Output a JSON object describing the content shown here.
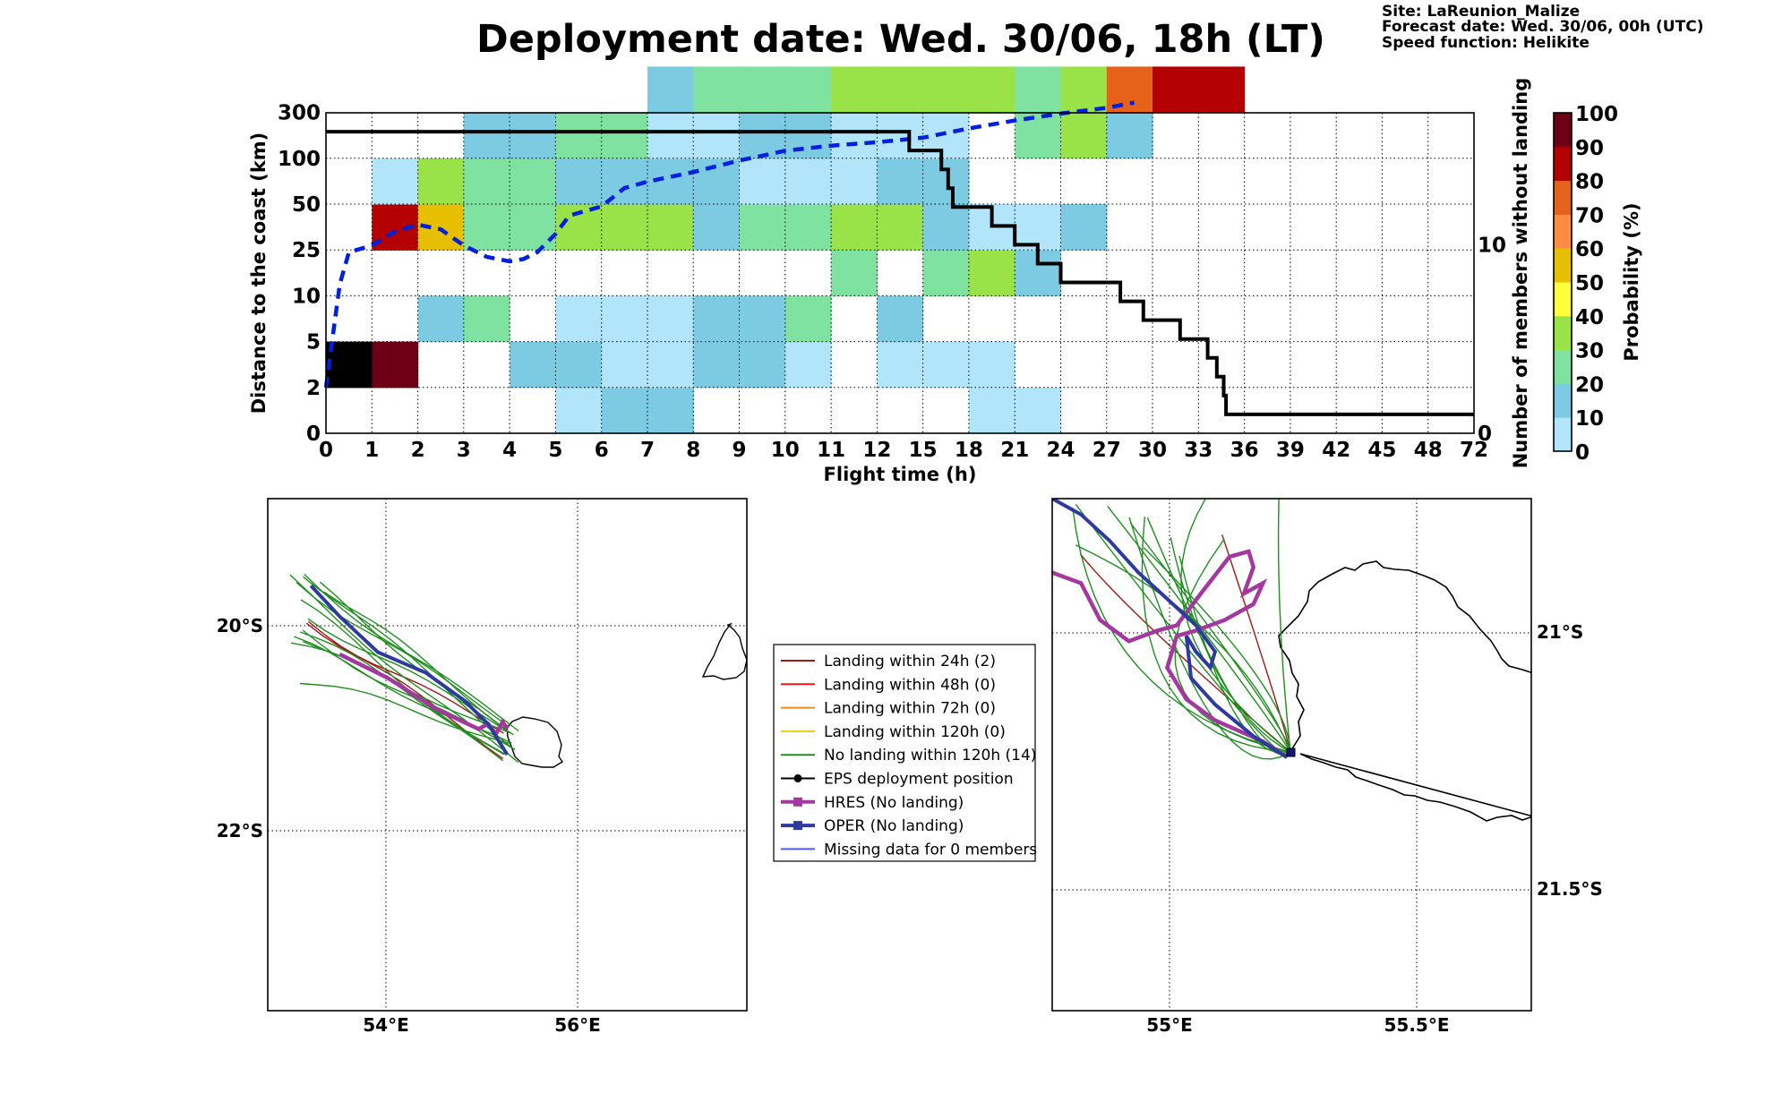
{
  "title": "Deployment date: Wed. 30/06, 18h (LT)",
  "site_info": {
    "site": "Site: LaReunion_Malize",
    "forecast": "Forecast date: Wed. 30/06, 00h (UTC)",
    "speed": "Speed function: Helikite"
  },
  "colors": {
    "bins": [
      "#b3e5fa",
      "#7ccbe3",
      "#7fe2a1",
      "#99e248",
      "#ffff3b",
      "#e6c000",
      "#ff8c40",
      "#e6621a",
      "#b40000",
      "#6e0015"
    ],
    "blue_curve": "#0020e0",
    "step_curve": "#000000",
    "hres": "#a3389f",
    "oper": "#2e3a9e",
    "eps_green": "#1f8f1f",
    "eps_red": "#a01818"
  },
  "chart_data": [
    {
      "type": "heatmap",
      "title": "Deployment date: Wed. 30/06, 18h (LT)",
      "xlabel": "Flight time (h)",
      "ylabel": "Distance to the coast (km)",
      "y2label": "Number of members without landing",
      "colorbar_label": "Probability (%)",
      "x_ticks": [
        "0",
        "1",
        "2",
        "3",
        "4",
        "5",
        "6",
        "7",
        "8",
        "9",
        "10",
        "11",
        "12",
        "15",
        "18",
        "21",
        "24",
        "27",
        "30",
        "33",
        "36",
        "39",
        "42",
        "45",
        "48",
        "72"
      ],
      "y_ticks": [
        "0",
        "2",
        "5",
        "10",
        "25",
        "50",
        "100",
        "300"
      ],
      "y2_ticks": [
        "0",
        "10"
      ],
      "y2_range": [
        0,
        17
      ],
      "colorbar_ticks": [
        "0",
        "10",
        "20",
        "30",
        "40",
        "50",
        "60",
        "70",
        "80",
        "90",
        "100"
      ],
      "grid": true,
      "cells": [
        [
          0,
          1,
          10
        ],
        [
          1,
          1,
          9
        ],
        [
          1,
          4,
          8
        ],
        [
          1,
          5,
          0
        ],
        [
          2,
          2,
          1
        ],
        [
          2,
          4,
          5
        ],
        [
          2,
          5,
          3
        ],
        [
          3,
          2,
          2
        ],
        [
          3,
          4,
          2
        ],
        [
          3,
          5,
          2
        ],
        [
          3,
          6,
          1
        ],
        [
          4,
          1,
          1
        ],
        [
          4,
          4,
          2
        ],
        [
          4,
          5,
          2
        ],
        [
          4,
          6,
          1
        ],
        [
          5,
          0,
          0
        ],
        [
          5,
          1,
          1
        ],
        [
          5,
          2,
          0
        ],
        [
          5,
          4,
          3
        ],
        [
          5,
          5,
          1
        ],
        [
          5,
          6,
          2
        ],
        [
          6,
          0,
          1
        ],
        [
          6,
          1,
          0
        ],
        [
          6,
          2,
          0
        ],
        [
          6,
          4,
          3
        ],
        [
          6,
          5,
          1
        ],
        [
          6,
          6,
          2
        ],
        [
          7,
          0,
          1
        ],
        [
          7,
          1,
          0
        ],
        [
          7,
          2,
          0
        ],
        [
          7,
          4,
          3
        ],
        [
          7,
          5,
          1
        ],
        [
          7,
          6,
          0
        ],
        [
          7,
          7,
          1
        ],
        [
          8,
          1,
          1
        ],
        [
          8,
          2,
          1
        ],
        [
          8,
          4,
          1
        ],
        [
          8,
          5,
          1
        ],
        [
          8,
          6,
          0
        ],
        [
          8,
          7,
          2
        ],
        [
          9,
          1,
          1
        ],
        [
          9,
          2,
          1
        ],
        [
          9,
          4,
          2
        ],
        [
          9,
          5,
          0
        ],
        [
          9,
          6,
          1
        ],
        [
          9,
          7,
          2
        ],
        [
          10,
          1,
          0
        ],
        [
          10,
          2,
          2
        ],
        [
          10,
          4,
          2
        ],
        [
          10,
          5,
          0
        ],
        [
          10,
          6,
          1
        ],
        [
          10,
          7,
          2
        ],
        [
          11,
          3,
          2
        ],
        [
          11,
          4,
          3
        ],
        [
          11,
          5,
          0
        ],
        [
          11,
          6,
          0
        ],
        [
          11,
          7,
          3
        ],
        [
          12,
          1,
          0
        ],
        [
          12,
          2,
          1
        ],
        [
          12,
          4,
          3
        ],
        [
          12,
          5,
          1
        ],
        [
          12,
          6,
          0
        ],
        [
          12,
          7,
          3
        ],
        [
          13,
          1,
          0
        ],
        [
          13,
          3,
          2
        ],
        [
          13,
          4,
          1
        ],
        [
          13,
          5,
          1
        ],
        [
          13,
          6,
          0
        ],
        [
          13,
          7,
          3
        ],
        [
          14,
          0,
          0
        ],
        [
          14,
          1,
          0
        ],
        [
          14,
          3,
          3
        ],
        [
          14,
          4,
          0
        ],
        [
          14,
          7,
          3
        ],
        [
          15,
          0,
          0
        ],
        [
          15,
          3,
          1
        ],
        [
          15,
          4,
          0
        ],
        [
          15,
          6,
          2
        ],
        [
          15,
          7,
          2
        ],
        [
          16,
          4,
          1
        ],
        [
          16,
          6,
          3
        ],
        [
          16,
          7,
          3
        ],
        [
          17,
          6,
          1
        ],
        [
          17,
          7,
          7
        ],
        [
          18,
          7,
          8
        ],
        [
          19,
          7,
          8
        ]
      ],
      "series": [
        {
          "name": "",
          "style": "blue-dashed",
          "axis": "left",
          "points": [
            [
              0,
              2
            ],
            [
              0.1,
              3.5
            ],
            [
              0.3,
              6.5
            ],
            [
              0.5,
              7.9
            ],
            [
              1,
              8.2
            ],
            [
              1.5,
              8.8
            ],
            [
              2,
              9.1
            ],
            [
              2.5,
              8.9
            ],
            [
              3,
              8.2
            ],
            [
              3.5,
              7.7
            ],
            [
              4,
              7.5
            ],
            [
              4.3,
              7.6
            ],
            [
              4.6,
              7.9
            ],
            [
              5,
              8.7
            ],
            [
              5.3,
              9.5
            ],
            [
              6,
              9.9
            ],
            [
              6.5,
              10.7
            ],
            [
              7,
              10.98
            ],
            [
              8,
              11.4
            ],
            [
              9,
              11.9
            ],
            [
              10,
              12.33
            ],
            [
              11,
              12.55
            ],
            [
              12,
              12.7
            ],
            [
              13,
              12.9
            ],
            [
              14,
              13.3
            ],
            [
              15,
              13.65
            ],
            [
              16,
              13.95
            ],
            [
              17,
              14.2
            ],
            [
              17.6,
              14.43
            ]
          ]
        },
        {
          "name": "",
          "style": "black-step",
          "axis": "right",
          "points": [
            [
              0,
              16
            ],
            [
              12.7,
              16
            ],
            [
              12.7,
              15
            ],
            [
              13.4,
              15
            ],
            [
              13.4,
              14
            ],
            [
              13.55,
              14
            ],
            [
              13.55,
              13
            ],
            [
              13.65,
              13
            ],
            [
              13.65,
              12
            ],
            [
              14.5,
              12
            ],
            [
              14.5,
              11
            ],
            [
              15,
              11
            ],
            [
              15,
              10
            ],
            [
              15.5,
              10
            ],
            [
              15.5,
              9
            ],
            [
              16,
              9
            ],
            [
              16,
              8
            ],
            [
              17.3,
              8
            ],
            [
              17.3,
              7
            ],
            [
              17.8,
              7
            ],
            [
              17.8,
              6
            ],
            [
              18.6,
              6
            ],
            [
              18.6,
              5
            ],
            [
              19.2,
              5
            ],
            [
              19.2,
              4
            ],
            [
              19.4,
              4
            ],
            [
              19.4,
              3
            ],
            [
              19.55,
              3
            ],
            [
              19.55,
              2
            ],
            [
              19.6,
              2
            ],
            [
              19.6,
              1
            ],
            [
              25,
              1
            ]
          ]
        }
      ]
    },
    {
      "type": "line",
      "title": "",
      "x_ticks": [
        "54°E",
        "56°E"
      ],
      "y_ticks": [
        "20°S",
        "22°S"
      ],
      "xlim": [
        52.75,
        57.75
      ],
      "ylim": [
        -23.75,
        -18.75
      ],
      "grid": true,
      "legend_position": "right, outside",
      "legend": [
        {
          "label": "Landing within 24h (2)",
          "color": "#a01818"
        },
        {
          "label": "Landing within 48h (0)",
          "color": "#ee1c1c"
        },
        {
          "label": "Landing within 72h (0)",
          "color": "#ee8c1c"
        },
        {
          "label": "Landing within 120h (0)",
          "color": "#eecc1c"
        },
        {
          "label": "No landing within 120h (14)",
          "color": "#1f8f1f"
        },
        {
          "label": "EPS deployment position",
          "color": "#000000"
        },
        {
          "label": "HRES (No landing)",
          "color": "#a3389f"
        },
        {
          "label": "OPER (No landing)",
          "color": "#2e3a9e"
        },
        {
          "label": "Missing data for 0 members",
          "color": "#4d59ff"
        }
      ],
      "series": [
        {
          "name": "HRES (No landing)",
          "points": [
            [
              53.5,
              -20.27
            ],
            [
              54,
              -20.5
            ],
            [
              54.5,
              -20.8
            ],
            [
              54.95,
              -21.0
            ],
            [
              55.05,
              -20.95
            ],
            [
              55.13,
              -21.05
            ],
            [
              55.2,
              -20.93
            ],
            [
              55.25,
              -21.0
            ]
          ]
        },
        {
          "name": "OPER (No landing)",
          "points": [
            [
              53.2,
              -19.6
            ],
            [
              53.5,
              -19.9
            ],
            [
              53.9,
              -20.25
            ],
            [
              54.4,
              -20.45
            ],
            [
              54.8,
              -20.72
            ],
            [
              55.05,
              -20.95
            ],
            [
              55.25,
              -21.25
            ]
          ]
        }
      ]
    },
    {
      "type": "line",
      "title": "",
      "x_ticks": [
        "55°E",
        "55.5°E"
      ],
      "y_ticks": [
        "21°S",
        "21.5°S"
      ],
      "xlim": [
        54.76,
        55.76
      ],
      "ylim": [
        -21.71,
        -20.74
      ],
      "grid": true,
      "series": [
        {
          "name": "HRES (No landing)",
          "points": [
            [
              54.76,
              -20.88
            ],
            [
              54.82,
              -20.9
            ],
            [
              54.86,
              -20.97
            ],
            [
              54.92,
              -21.01
            ],
            [
              54.98,
              -20.99
            ],
            [
              55.02,
              -20.98
            ],
            [
              55.07,
              -20.92
            ],
            [
              55.13,
              -20.85
            ],
            [
              55.17,
              -20.84
            ],
            [
              55.18,
              -20.87
            ],
            [
              55.16,
              -20.92
            ],
            [
              55.2,
              -20.9
            ],
            [
              55.18,
              -20.94
            ],
            [
              55.12,
              -20.97
            ],
            [
              55.06,
              -20.99
            ],
            [
              55.02,
              -21.0
            ],
            [
              55.0,
              -21.06
            ],
            [
              55.04,
              -21.12
            ],
            [
              55.1,
              -21.16
            ],
            [
              55.2,
              -21.2
            ],
            [
              55.25,
              -21.23
            ]
          ]
        },
        {
          "name": "OPER (No landing)",
          "points": [
            [
              54.76,
              -20.74
            ],
            [
              54.82,
              -20.77
            ],
            [
              54.88,
              -20.82
            ],
            [
              54.94,
              -20.88
            ],
            [
              55.0,
              -20.93
            ],
            [
              55.06,
              -20.98
            ],
            [
              55.1,
              -21.03
            ],
            [
              55.09,
              -21.06
            ],
            [
              55.06,
              -21.03
            ],
            [
              55.04,
              -21.0
            ],
            [
              55.05,
              -21.08
            ],
            [
              55.1,
              -21.13
            ],
            [
              55.18,
              -21.19
            ],
            [
              55.25,
              -21.23
            ]
          ]
        }
      ]
    }
  ]
}
